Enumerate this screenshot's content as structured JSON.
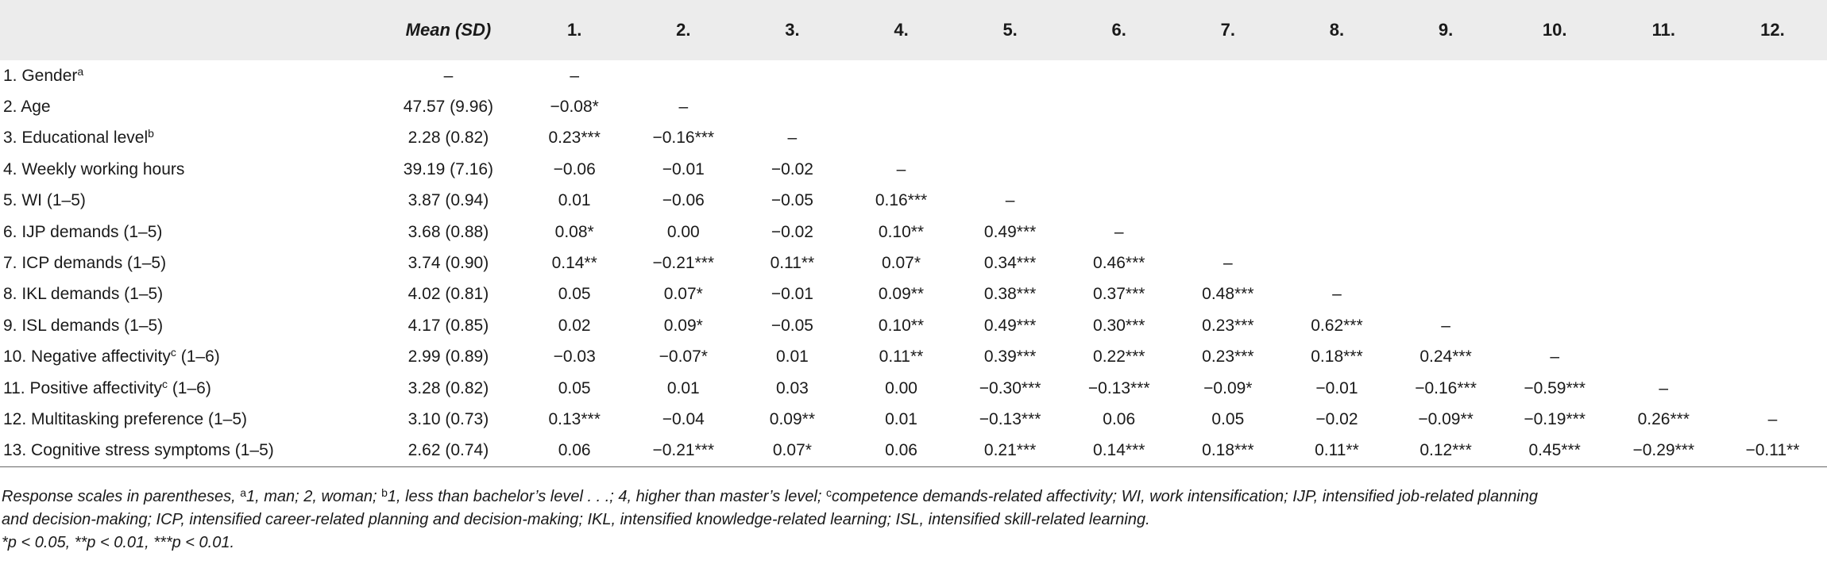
{
  "table": {
    "columns": [
      "",
      "Mean (SD)",
      "1.",
      "2.",
      "3.",
      "4.",
      "5.",
      "6.",
      "7.",
      "8.",
      "9.",
      "10.",
      "11.",
      "12."
    ],
    "rows": [
      {
        "label": "1. Gender",
        "sup": "a",
        "suffix": "",
        "cells": [
          "–",
          "–",
          "",
          "",
          "",
          "",
          "",
          "",
          "",
          "",
          "",
          "",
          ""
        ]
      },
      {
        "label": "2. Age",
        "sup": "",
        "suffix": "",
        "cells": [
          "47.57 (9.96)",
          "−0.08*",
          "–",
          "",
          "",
          "",
          "",
          "",
          "",
          "",
          "",
          "",
          ""
        ]
      },
      {
        "label": "3. Educational level",
        "sup": "b",
        "suffix": "",
        "cells": [
          "2.28 (0.82)",
          "0.23***",
          "−0.16***",
          "–",
          "",
          "",
          "",
          "",
          "",
          "",
          "",
          "",
          ""
        ]
      },
      {
        "label": "4. Weekly working hours",
        "sup": "",
        "suffix": "",
        "cells": [
          "39.19 (7.16)",
          "−0.06",
          "−0.01",
          "−0.02",
          "–",
          "",
          "",
          "",
          "",
          "",
          "",
          "",
          ""
        ]
      },
      {
        "label": "5. WI (1–5)",
        "sup": "",
        "suffix": "",
        "cells": [
          "3.87 (0.94)",
          "0.01",
          "−0.06",
          "−0.05",
          "0.16***",
          "–",
          "",
          "",
          "",
          "",
          "",
          "",
          ""
        ]
      },
      {
        "label": "6. IJP demands (1–5)",
        "sup": "",
        "suffix": "",
        "cells": [
          "3.68 (0.88)",
          "0.08*",
          "0.00",
          "−0.02",
          "0.10**",
          "0.49***",
          "–",
          "",
          "",
          "",
          "",
          "",
          ""
        ]
      },
      {
        "label": "7. ICP demands (1–5)",
        "sup": "",
        "suffix": "",
        "cells": [
          "3.74 (0.90)",
          "0.14**",
          "−0.21***",
          "0.11**",
          "0.07*",
          "0.34***",
          "0.46***",
          "–",
          "",
          "",
          "",
          "",
          ""
        ]
      },
      {
        "label": "8. IKL demands (1–5)",
        "sup": "",
        "suffix": "",
        "cells": [
          "4.02 (0.81)",
          "0.05",
          "0.07*",
          "−0.01",
          "0.09**",
          "0.38***",
          "0.37***",
          "0.48***",
          "–",
          "",
          "",
          "",
          ""
        ]
      },
      {
        "label": "9. ISL demands (1–5)",
        "sup": "",
        "suffix": "",
        "cells": [
          "4.17 (0.85)",
          "0.02",
          "0.09*",
          "−0.05",
          "0.10**",
          "0.49***",
          "0.30***",
          "0.23***",
          "0.62***",
          "–",
          "",
          "",
          ""
        ]
      },
      {
        "label": "10. Negative affectivity",
        "sup": "c",
        "suffix": " (1–6)",
        "cells": [
          "2.99 (0.89)",
          "−0.03",
          "−0.07*",
          "0.01",
          "0.11**",
          "0.39***",
          "0.22***",
          "0.23***",
          "0.18***",
          "0.24***",
          "–",
          "",
          ""
        ]
      },
      {
        "label": "11. Positive affectivity",
        "sup": "c",
        "suffix": " (1–6)",
        "cells": [
          "3.28 (0.82)",
          "0.05",
          "0.01",
          "0.03",
          "0.00",
          "−0.30***",
          "−0.13***",
          "−0.09*",
          "−0.01",
          "−0.16***",
          "−0.59***",
          "–",
          ""
        ]
      },
      {
        "label": "12. Multitasking preference (1–5)",
        "sup": "",
        "suffix": "",
        "cells": [
          "3.10 (0.73)",
          "0.13***",
          "−0.04",
          "0.09**",
          "0.01",
          "−0.13***",
          "0.06",
          "0.05",
          "−0.02",
          "−0.09**",
          "−0.19***",
          "0.26***",
          "–"
        ]
      },
      {
        "label": "13. Cognitive stress symptoms (1–5)",
        "sup": "",
        "suffix": "",
        "cells": [
          "2.62 (0.74)",
          "0.06",
          "−0.21***",
          "0.07*",
          "0.06",
          "0.21***",
          "0.14***",
          "0.18***",
          "0.11**",
          "0.12***",
          "0.45***",
          "−0.29***",
          "−0.11**"
        ]
      }
    ]
  },
  "notes": {
    "line1_a": "Response scales in parentheses, ",
    "line1_sup_a": "a",
    "line1_b": "1, man; 2, woman; ",
    "line1_sup_b": "b",
    "line1_c": "1, less than bachelor’s level . . .; 4, higher than master’s level; ",
    "line1_sup_c": "c",
    "line1_d": "competence demands-related affectivity; WI, work intensification; IJP, intensified job-related planning",
    "line2": "and decision-making; ICP, intensified career-related planning and decision-making; IKL, intensified knowledge-related learning; ISL, intensified skill-related learning.",
    "line3": "*p < 0.05, **p < 0.01, ***p < 0.01."
  }
}
